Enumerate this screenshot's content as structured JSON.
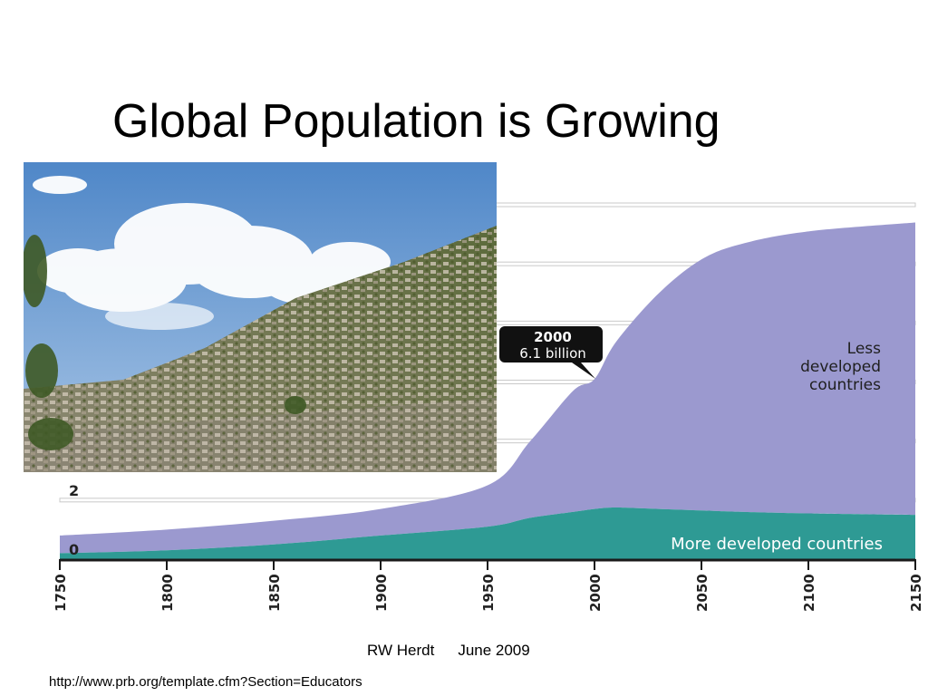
{
  "slide": {
    "title": "Global Population is Growing",
    "author": "RW Herdt",
    "date": "June 2009",
    "source_url": "http://www.prb.org/template.cfm?Section=Educators"
  },
  "photo": {
    "icon": "hillside-settlement-photo"
  },
  "chart_data": {
    "type": "area",
    "x": [
      1750,
      1800,
      1850,
      1900,
      1950,
      1970,
      1990,
      2000,
      2010,
      2030,
      2050,
      2070,
      2100,
      2150
    ],
    "x_ticks": [
      "1750",
      "1800",
      "1850",
      "1900",
      "1950",
      "2000",
      "2050",
      "2100",
      "2150"
    ],
    "y_ticks": [
      "0",
      "2"
    ],
    "ylim": [
      0,
      12
    ],
    "series": [
      {
        "name": "More developed countries",
        "color": "#2e9a94",
        "values": [
          0.2,
          0.3,
          0.5,
          0.8,
          1.1,
          1.4,
          1.6,
          1.7,
          1.75,
          1.7,
          1.65,
          1.6,
          1.55,
          1.5
        ]
      },
      {
        "name": "Less developed countries",
        "color": "#9b99cf",
        "values": [
          0.6,
          0.7,
          0.8,
          0.9,
          1.4,
          2.6,
          4.1,
          4.4,
          5.6,
          7.3,
          8.5,
          9.1,
          9.55,
          9.9
        ]
      }
    ],
    "callout": {
      "year": "2000",
      "value": "6.1 billion"
    },
    "label_less": [
      "Less",
      "developed",
      "countries"
    ],
    "label_more": "More developed countries"
  }
}
